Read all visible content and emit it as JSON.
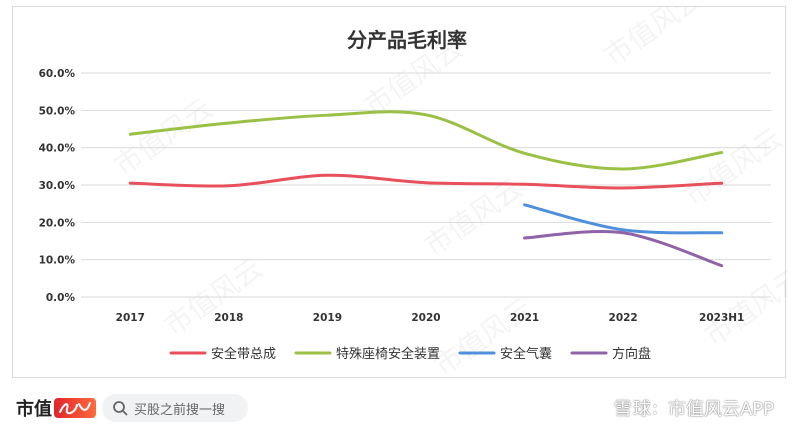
{
  "chart_data": {
    "type": "line",
    "title": "分产品毛利率",
    "categories": [
      "2017",
      "2018",
      "2019",
      "2020",
      "2021",
      "2022",
      "2023H1"
    ],
    "yticks": [
      "0.0%",
      "10.0%",
      "20.0%",
      "30.0%",
      "40.0%",
      "50.0%",
      "60.0%"
    ],
    "ylim": [
      0,
      60
    ],
    "grid": true,
    "legend_position": "bottom",
    "series": [
      {
        "name": "安全带总成",
        "color": "#e8505b",
        "values": [
          30.5,
          29.8,
          32.6,
          30.6,
          30.2,
          29.2,
          30.5
        ]
      },
      {
        "name": "特殊座椅安全装置",
        "color": "#9bc046",
        "values": [
          43.6,
          46.6,
          48.7,
          48.8,
          38.5,
          34.3,
          38.7
        ]
      },
      {
        "name": "安全气囊",
        "color": "#4f8fdc",
        "values": [
          null,
          null,
          null,
          null,
          24.7,
          18.0,
          17.2
        ]
      },
      {
        "name": "方向盘",
        "color": "#8e63a8",
        "values": [
          null,
          null,
          null,
          null,
          15.8,
          17.2,
          8.4
        ]
      }
    ]
  },
  "watermark_text": "市值风云",
  "footer": {
    "brand_text": "市值",
    "search_placeholder": "买股之前搜一搜",
    "xueqiu_name": "雪球",
    "xueqiu_separator": ":",
    "xueqiu_app": "市值风云APP"
  }
}
